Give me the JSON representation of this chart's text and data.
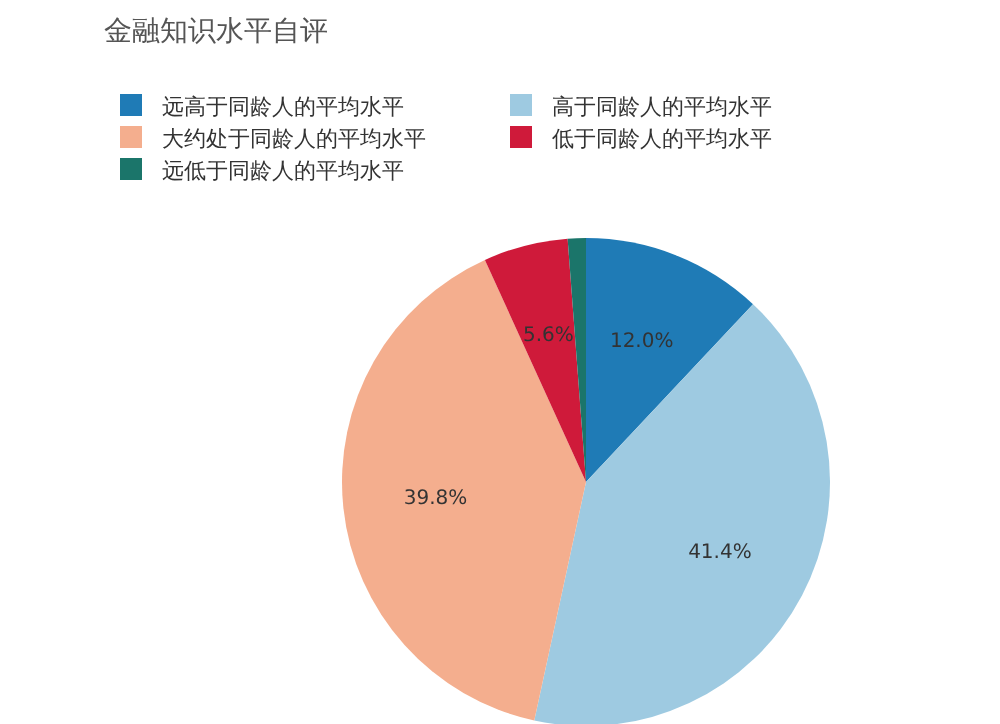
{
  "chart_data": {
    "type": "pie",
    "title": "金融知识水平自评",
    "categories": [
      "远高于同龄人的平均水平",
      "高于同龄人的平均水平",
      "大约处于同龄人的平均水平",
      "低于同龄人的平均水平",
      "远低于同龄人的平均水平"
    ],
    "values": [
      12.0,
      41.4,
      39.8,
      5.6,
      1.2
    ],
    "colors": [
      "#1f7bb6",
      "#9ecae1",
      "#f4ae8e",
      "#cf1a3a",
      "#1b756a"
    ],
    "value_labels": [
      "12.0%",
      "41.4%",
      "39.8%",
      "5.6%",
      null
    ],
    "legend": "top"
  }
}
